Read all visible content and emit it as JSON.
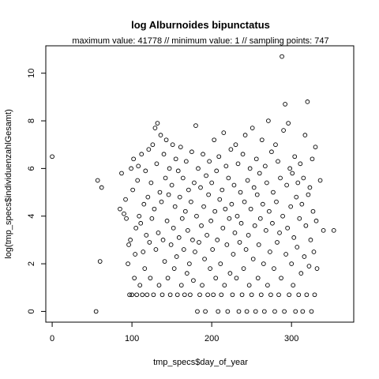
{
  "chart_data": {
    "type": "scatter",
    "title": "log Alburnoides bipunctatus",
    "subtitle": "maximum value: 41778  //  minimum value: 1  // sampling points: 747",
    "xlabel": "tmp_specs$day_of_year",
    "ylabel": "log(tmp_specs$individuenzahlGesamt)",
    "xlim": [
      -8,
      378
    ],
    "ylim": [
      -0.45,
      11.15
    ],
    "x_ticks": [
      0,
      100,
      200,
      300
    ],
    "y_ticks": [
      0,
      2,
      4,
      6,
      8,
      10
    ],
    "grid": false,
    "legend": "none",
    "point_color": "#000000",
    "points": [
      [
        0,
        6.5
      ],
      [
        55,
        0
      ],
      [
        57,
        5.5
      ],
      [
        60,
        2.1
      ],
      [
        62,
        5.2
      ],
      [
        85,
        4.3
      ],
      [
        87,
        5.8
      ],
      [
        90,
        4.1
      ],
      [
        92,
        4.7
      ],
      [
        93,
        3.9
      ],
      [
        95,
        2.0
      ],
      [
        96,
        2.8
      ],
      [
        97,
        0.7
      ],
      [
        98,
        3.0
      ],
      [
        99,
        6.0
      ],
      [
        100,
        0.7
      ],
      [
        101,
        5.1
      ],
      [
        102,
        6.4
      ],
      [
        103,
        1.4
      ],
      [
        104,
        2.4
      ],
      [
        105,
        3.5
      ],
      [
        106,
        0.7
      ],
      [
        107,
        5.5
      ],
      [
        108,
        6.1
      ],
      [
        109,
        4.0
      ],
      [
        110,
        1.1
      ],
      [
        111,
        3.7
      ],
      [
        112,
        6.6
      ],
      [
        113,
        0.7
      ],
      [
        114,
        2.5
      ],
      [
        115,
        4.5
      ],
      [
        116,
        1.8
      ],
      [
        117,
        5.9
      ],
      [
        118,
        3.2
      ],
      [
        119,
        0.7
      ],
      [
        120,
        4.8
      ],
      [
        121,
        6.8
      ],
      [
        122,
        2.9
      ],
      [
        123,
        1.4
      ],
      [
        124,
        5.4
      ],
      [
        125,
        3.9
      ],
      [
        126,
        7.0
      ],
      [
        127,
        0.7
      ],
      [
        128,
        4.3
      ],
      [
        129,
        7.7
      ],
      [
        130,
        2.6
      ],
      [
        131,
        6.2
      ],
      [
        132,
        7.9
      ],
      [
        133,
        3.3
      ],
      [
        134,
        1.1
      ],
      [
        135,
        5.0
      ],
      [
        136,
        7.4
      ],
      [
        137,
        4.6
      ],
      [
        138,
        0.7
      ],
      [
        139,
        3.0
      ],
      [
        140,
        6.6
      ],
      [
        141,
        2.1
      ],
      [
        142,
        5.6
      ],
      [
        143,
        7.2
      ],
      [
        144,
        3.8
      ],
      [
        145,
        1.4
      ],
      [
        146,
        4.9
      ],
      [
        147,
        6.0
      ],
      [
        148,
        0.7
      ],
      [
        149,
        2.8
      ],
      [
        150,
        5.3
      ],
      [
        151,
        7.0
      ],
      [
        152,
        3.5
      ],
      [
        153,
        1.8
      ],
      [
        154,
        4.4
      ],
      [
        155,
        6.4
      ],
      [
        156,
        2.3
      ],
      [
        157,
        0.7
      ],
      [
        158,
        5.9
      ],
      [
        159,
        3.1
      ],
      [
        160,
        4.8
      ],
      [
        161,
        6.9
      ],
      [
        162,
        1.1
      ],
      [
        163,
        3.9
      ],
      [
        164,
        5.6
      ],
      [
        165,
        2.6
      ],
      [
        166,
        0.7
      ],
      [
        167,
        4.2
      ],
      [
        168,
        6.3
      ],
      [
        169,
        1.6
      ],
      [
        170,
        3.4
      ],
      [
        171,
        5.1
      ],
      [
        172,
        2.0
      ],
      [
        173,
        0.7
      ],
      [
        174,
        4.6
      ],
      [
        175,
        6.7
      ],
      [
        176,
        3.0
      ],
      [
        177,
        1.3
      ],
      [
        178,
        5.4
      ],
      [
        179,
        2.5
      ],
      [
        180,
        7.8
      ],
      [
        181,
        4.0
      ],
      [
        182,
        0
      ],
      [
        183,
        6.0
      ],
      [
        184,
        2.9
      ],
      [
        185,
        0.7
      ],
      [
        186,
        5.2
      ],
      [
        187,
        3.6
      ],
      [
        188,
        1.1
      ],
      [
        189,
        6.6
      ],
      [
        190,
        4.4
      ],
      [
        191,
        2.2
      ],
      [
        192,
        0
      ],
      [
        193,
        5.7
      ],
      [
        194,
        3.2
      ],
      [
        195,
        0.7
      ],
      [
        196,
        4.9
      ],
      [
        197,
        6.3
      ],
      [
        198,
        1.8
      ],
      [
        199,
        3.8
      ],
      [
        200,
        5.4
      ],
      [
        201,
        2.6
      ],
      [
        202,
        0.7
      ],
      [
        203,
        7.2
      ],
      [
        204,
        4.2
      ],
      [
        205,
        1.4
      ],
      [
        206,
        5.9
      ],
      [
        207,
        3.0
      ],
      [
        208,
        0
      ],
      [
        209,
        6.5
      ],
      [
        210,
        4.7
      ],
      [
        211,
        2.0
      ],
      [
        212,
        0.7
      ],
      [
        213,
        5.1
      ],
      [
        214,
        3.5
      ],
      [
        215,
        7.5
      ],
      [
        216,
        1.1
      ],
      [
        217,
        4.3
      ],
      [
        218,
        6.1
      ],
      [
        219,
        2.8
      ],
      [
        220,
        0
      ],
      [
        221,
        5.6
      ],
      [
        222,
        3.9
      ],
      [
        223,
        1.6
      ],
      [
        224,
        6.8
      ],
      [
        225,
        4.5
      ],
      [
        226,
        0.7
      ],
      [
        227,
        2.4
      ],
      [
        228,
        5.3
      ],
      [
        229,
        3.3
      ],
      [
        230,
        7.0
      ],
      [
        231,
        1.4
      ],
      [
        232,
        4.0
      ],
      [
        233,
        6.2
      ],
      [
        234,
        0
      ],
      [
        235,
        2.9
      ],
      [
        236,
        5.0
      ],
      [
        237,
        3.7
      ],
      [
        238,
        0.7
      ],
      [
        239,
        6.6
      ],
      [
        240,
        1.8
      ],
      [
        241,
        4.6
      ],
      [
        242,
        7.4
      ],
      [
        243,
        2.6
      ],
      [
        244,
        0
      ],
      [
        245,
        5.5
      ],
      [
        246,
        3.2
      ],
      [
        247,
        1.1
      ],
      [
        248,
        6.0
      ],
      [
        249,
        4.3
      ],
      [
        250,
        0.7
      ],
      [
        251,
        7.7
      ],
      [
        252,
        2.2
      ],
      [
        253,
        5.2
      ],
      [
        254,
        3.6
      ],
      [
        255,
        0
      ],
      [
        256,
        6.4
      ],
      [
        257,
        4.9
      ],
      [
        258,
        1.4
      ],
      [
        259,
        2.8
      ],
      [
        260,
        5.8
      ],
      [
        261,
        3.9
      ],
      [
        262,
        0.7
      ],
      [
        263,
        7.2
      ],
      [
        264,
        4.5
      ],
      [
        265,
        2.0
      ],
      [
        266,
        0
      ],
      [
        267,
        6.1
      ],
      [
        268,
        3.4
      ],
      [
        269,
        5.4
      ],
      [
        270,
        1.1
      ],
      [
        271,
        8.0
      ],
      [
        272,
        4.2
      ],
      [
        273,
        2.5
      ],
      [
        274,
        0.7
      ],
      [
        275,
        6.7
      ],
      [
        276,
        3.7
      ],
      [
        277,
        5.0
      ],
      [
        278,
        1.8
      ],
      [
        279,
        0
      ],
      [
        280,
        7.0
      ],
      [
        281,
        4.6
      ],
      [
        282,
        2.9
      ],
      [
        283,
        6.3
      ],
      [
        284,
        0.7
      ],
      [
        285,
        3.3
      ],
      [
        286,
        5.6
      ],
      [
        287,
        1.4
      ],
      [
        288,
        10.7
      ],
      [
        289,
        4.0
      ],
      [
        290,
        7.6
      ],
      [
        291,
        0
      ],
      [
        292,
        8.7
      ],
      [
        293,
        2.4
      ],
      [
        294,
        5.3
      ],
      [
        295,
        3.5
      ],
      [
        296,
        7.9
      ],
      [
        297,
        0.7
      ],
      [
        298,
        6.0
      ],
      [
        299,
        4.4
      ],
      [
        300,
        2.0
      ],
      [
        301,
        5.8
      ],
      [
        302,
        1.1
      ],
      [
        303,
        3.1
      ],
      [
        304,
        6.5
      ],
      [
        305,
        0
      ],
      [
        306,
        4.8
      ],
      [
        307,
        2.7
      ],
      [
        308,
        5.4
      ],
      [
        309,
        0.7
      ],
      [
        310,
        3.9
      ],
      [
        311,
        6.2
      ],
      [
        312,
        1.6
      ],
      [
        313,
        4.5
      ],
      [
        314,
        0
      ],
      [
        315,
        5.6
      ],
      [
        316,
        2.3
      ],
      [
        317,
        7.4
      ],
      [
        318,
        3.6
      ],
      [
        319,
        0.7
      ],
      [
        320,
        8.8
      ],
      [
        321,
        4.9
      ],
      [
        322,
        1.9
      ],
      [
        323,
        5.2
      ],
      [
        324,
        3.0
      ],
      [
        325,
        0
      ],
      [
        326,
        6.4
      ],
      [
        327,
        4.2
      ],
      [
        328,
        2.5
      ],
      [
        329,
        0.7
      ],
      [
        330,
        6.9
      ],
      [
        331,
        3.8
      ],
      [
        332,
        1.8
      ],
      [
        336,
        5.5
      ],
      [
        340,
        3.4
      ],
      [
        353,
        3.4
      ]
    ]
  }
}
